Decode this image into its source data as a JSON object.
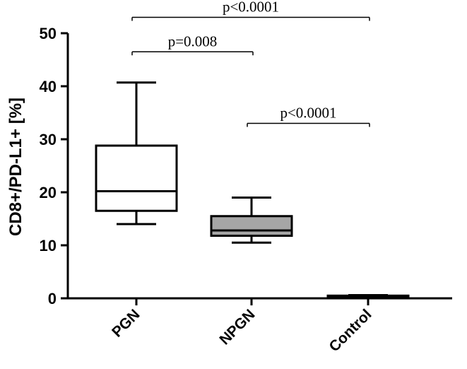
{
  "chart_data": {
    "type": "boxplot",
    "ylabel": "CD8+/PD-L1+ [%]",
    "xlabel": "",
    "ylim": [
      0,
      50
    ],
    "yticks": [
      0,
      10,
      20,
      30,
      40,
      50
    ],
    "categories": [
      "PGN",
      "NPGN",
      "Control"
    ],
    "boxes": [
      {
        "category": "PGN",
        "min": 14.0,
        "q1": 16.5,
        "median": 20.2,
        "q3": 28.8,
        "max": 40.7,
        "fill": "#ffffff"
      },
      {
        "category": "NPGN",
        "min": 10.5,
        "q1": 11.8,
        "median": 12.8,
        "q3": 15.5,
        "max": 19.0,
        "fill": "#a6a6a6"
      },
      {
        "category": "Control",
        "min": 0.2,
        "q1": 0.3,
        "median": 0.4,
        "q3": 0.5,
        "max": 0.6,
        "fill": "#ffffff"
      }
    ],
    "significance": [
      {
        "from": "PGN",
        "to": "Control",
        "label": "p<0.0001",
        "level": 53
      },
      {
        "from": "PGN",
        "to": "NPGN",
        "label": "p=0.008",
        "level": 46.5
      },
      {
        "from": "NPGN",
        "to": "Control",
        "label": "p<0.0001",
        "level": 33
      }
    ]
  }
}
